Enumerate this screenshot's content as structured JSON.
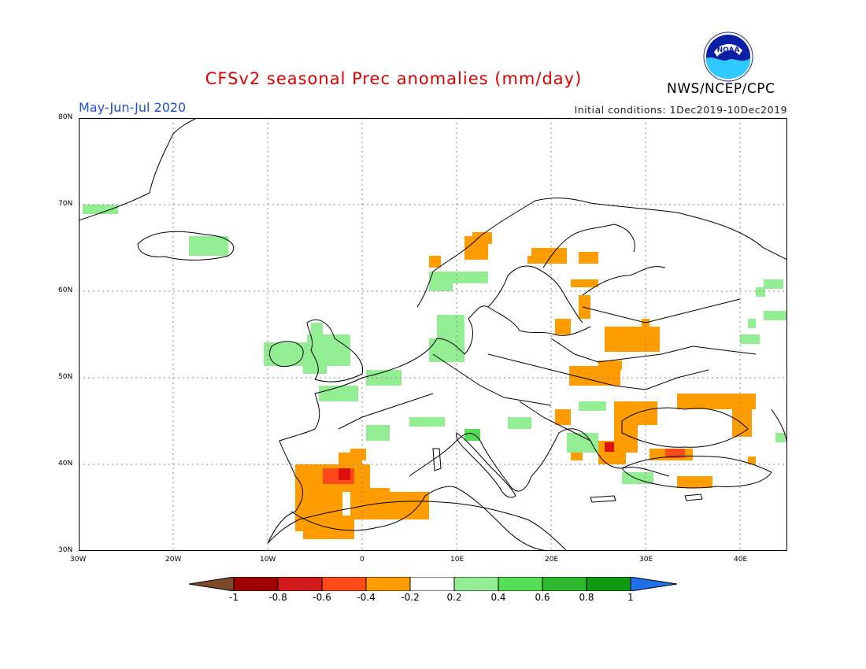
{
  "title": "CFSv2 seasonal Prec anomalies (mm/day)",
  "period": "May-Jun-Jul 2020",
  "initial_conditions": "Initial conditions: 1Dec2019-10Dec2019",
  "agency": "NWS/NCEP/CPC",
  "logo_text": "NOAA",
  "lat_ticks": [
    "80N",
    "70N",
    "60N",
    "50N",
    "40N",
    "30N"
  ],
  "lon_ticks": [
    "30W",
    "20W",
    "10W",
    "0",
    "10E",
    "20E",
    "30E",
    "40E"
  ],
  "colorbar": {
    "labels": [
      "-1",
      "-0.8",
      "-0.6",
      "-0.4",
      "-0.2",
      "0.2",
      "0.4",
      "0.6",
      "0.8",
      "1"
    ],
    "colors": [
      "#7a4a2a",
      "#a00000",
      "#d11a1a",
      "#ff4a1a",
      "#ff9c00",
      "#ffffff",
      "#93ee93",
      "#55dd55",
      "#2db82d",
      "#119911",
      "#1e6fe8"
    ]
  },
  "colors": {
    "dry_orange": "#ff9c00",
    "dry_red": "#ff4a1a",
    "dry_deepred": "#e01010",
    "wet_lightgreen": "#93ee93",
    "wet_green": "#55dd55"
  }
}
